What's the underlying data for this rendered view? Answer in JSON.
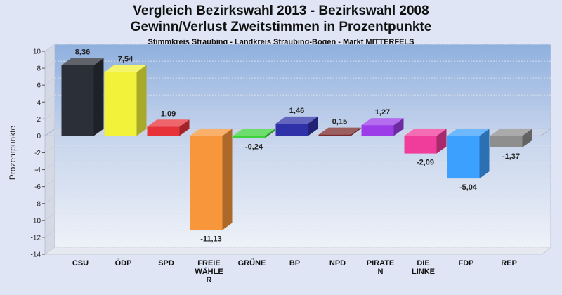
{
  "chart_data": {
    "type": "bar",
    "title": "Vergleich Bezirkswahl 2013 - Bezirkswahl 2008",
    "title2": "Gewinn/Verlust Zweitstimmen in Prozentpunkte",
    "subtitle": "Stimmkreis Straubing - Landkreis Straubing-Bogen - Markt MITTERFELS",
    "ylabel": "Prozentpunkte",
    "ylim": [
      -14,
      10
    ],
    "yticks": [
      10,
      8,
      6,
      4,
      2,
      0,
      -2,
      -4,
      -6,
      -8,
      -10,
      -12,
      -14
    ],
    "grid": true,
    "categories": [
      [
        "CSU"
      ],
      [
        "ÖDP"
      ],
      [
        "SPD"
      ],
      [
        "FREIE",
        "WÄHLE",
        "R"
      ],
      [
        "GRÜNE"
      ],
      [
        "BP"
      ],
      [
        "NPD"
      ],
      [
        "PIRATE",
        "N"
      ],
      [
        "DIE",
        "LINKE"
      ],
      [
        "FDP"
      ],
      [
        "REP"
      ]
    ],
    "values": [
      8.36,
      7.54,
      1.09,
      -11.13,
      -0.24,
      1.46,
      0.15,
      1.27,
      -2.09,
      -5.04,
      -1.37
    ],
    "value_labels": [
      "8,36",
      "7,54",
      "1,09",
      "-11,13",
      "-0,24",
      "1,46",
      "0,15",
      "1,27",
      "-2,09",
      "-5,04",
      "-1,37"
    ],
    "colors": [
      "#2b2f38",
      "#f2f23a",
      "#e8323a",
      "#f7963a",
      "#3cd23c",
      "#2f31a8",
      "#7a2a2a",
      "#9b3ce8",
      "#f03c9b",
      "#3ca0ff",
      "#8e8e8e"
    ]
  }
}
